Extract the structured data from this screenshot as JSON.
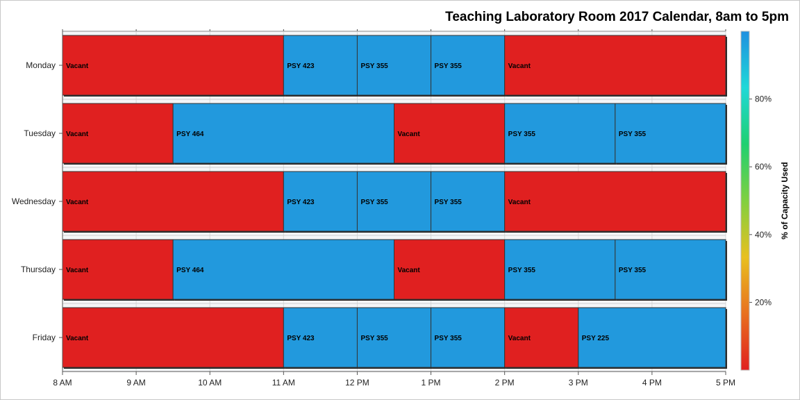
{
  "chart_data": {
    "type": "bar",
    "subtype": "horizontal-timeline",
    "title": "Teaching Laboratory Room 2017 Calendar, 8am to 5pm",
    "x_ticks": [
      {
        "value": 8,
        "label": "8 AM"
      },
      {
        "value": 9,
        "label": "9 AM"
      },
      {
        "value": 10,
        "label": "10 AM"
      },
      {
        "value": 11,
        "label": "11 AM"
      },
      {
        "value": 12,
        "label": "12 PM"
      },
      {
        "value": 13,
        "label": "1 PM"
      },
      {
        "value": 14,
        "label": "2 PM"
      },
      {
        "value": 15,
        "label": "3 PM"
      },
      {
        "value": 16,
        "label": "4 PM"
      },
      {
        "value": 17,
        "label": "5 PM"
      }
    ],
    "xlim": [
      8,
      17
    ],
    "grid": true,
    "days": [
      {
        "name": "Monday",
        "events": [
          {
            "label": "Vacant",
            "start": 8,
            "end": 11,
            "capacity": 0
          },
          {
            "label": "PSY 423",
            "start": 11,
            "end": 12,
            "capacity": 100
          },
          {
            "label": "PSY 355",
            "start": 12,
            "end": 13,
            "capacity": 100
          },
          {
            "label": "PSY 355",
            "start": 13,
            "end": 14,
            "capacity": 100
          },
          {
            "label": "Vacant",
            "start": 14,
            "end": 17,
            "capacity": 0
          }
        ]
      },
      {
        "name": "Tuesday",
        "events": [
          {
            "label": "Vacant",
            "start": 8,
            "end": 9.5,
            "capacity": 0
          },
          {
            "label": "PSY 464",
            "start": 9.5,
            "end": 12.5,
            "capacity": 100
          },
          {
            "label": "Vacant",
            "start": 12.5,
            "end": 14,
            "capacity": 0
          },
          {
            "label": "PSY 355",
            "start": 14,
            "end": 15.5,
            "capacity": 100
          },
          {
            "label": "PSY 355",
            "start": 15.5,
            "end": 17,
            "capacity": 100
          }
        ]
      },
      {
        "name": "Wednesday",
        "events": [
          {
            "label": "Vacant",
            "start": 8,
            "end": 11,
            "capacity": 0
          },
          {
            "label": "PSY 423",
            "start": 11,
            "end": 12,
            "capacity": 100
          },
          {
            "label": "PSY 355",
            "start": 12,
            "end": 13,
            "capacity": 100
          },
          {
            "label": "PSY 355",
            "start": 13,
            "end": 14,
            "capacity": 100
          },
          {
            "label": "Vacant",
            "start": 14,
            "end": 17,
            "capacity": 0
          }
        ]
      },
      {
        "name": "Thursday",
        "events": [
          {
            "label": "Vacant",
            "start": 8,
            "end": 9.5,
            "capacity": 0
          },
          {
            "label": "PSY 464",
            "start": 9.5,
            "end": 12.5,
            "capacity": 100
          },
          {
            "label": "Vacant",
            "start": 12.5,
            "end": 14,
            "capacity": 0
          },
          {
            "label": "PSY 355",
            "start": 14,
            "end": 15.5,
            "capacity": 100
          },
          {
            "label": "PSY 355",
            "start": 15.5,
            "end": 17,
            "capacity": 100
          }
        ]
      },
      {
        "name": "Friday",
        "events": [
          {
            "label": "Vacant",
            "start": 8,
            "end": 11,
            "capacity": 0
          },
          {
            "label": "PSY 423",
            "start": 11,
            "end": 12,
            "capacity": 100
          },
          {
            "label": "PSY 355",
            "start": 12,
            "end": 13,
            "capacity": 100
          },
          {
            "label": "PSY 355",
            "start": 13,
            "end": 14,
            "capacity": 100
          },
          {
            "label": "Vacant",
            "start": 14,
            "end": 15,
            "capacity": 0
          },
          {
            "label": "PSY 225",
            "start": 15,
            "end": 17,
            "capacity": 100
          }
        ]
      }
    ],
    "colorbar": {
      "title": "% of Capacity Used",
      "ticks": [
        {
          "value": 20,
          "label": "20%"
        },
        {
          "value": 40,
          "label": "40%"
        },
        {
          "value": 60,
          "label": "60%"
        },
        {
          "value": 80,
          "label": "80%"
        }
      ],
      "range": [
        0,
        100
      ],
      "gradient": [
        "#e02020",
        "#e87020",
        "#e8c020",
        "#80d040",
        "#20d070",
        "#20d8d8",
        "#2090e0"
      ]
    },
    "colors": {
      "vacant": "#e02020",
      "occupied": "#2299dd"
    }
  }
}
